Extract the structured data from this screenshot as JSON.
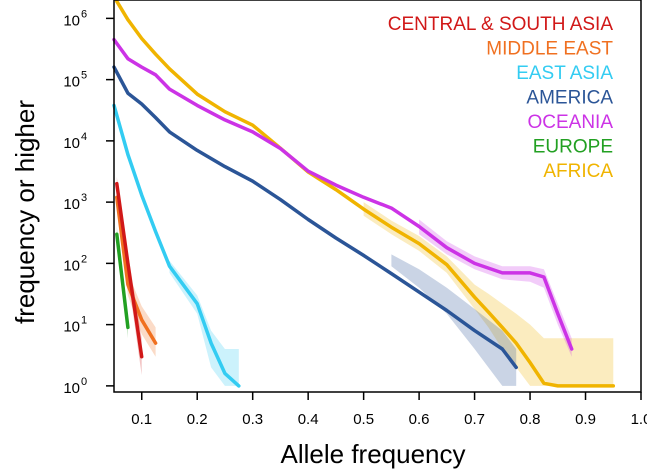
{
  "chart_data": {
    "type": "line",
    "xlabel": "Allele frequency",
    "ylabel": "frequency or higher",
    "xlim": [
      0.05,
      1.0
    ],
    "ylim_log10": [
      -0.1,
      6.3
    ],
    "y_scale": "log10",
    "grid": false,
    "legend_placement": "top-right",
    "x_ticks": [
      {
        "value": 0.1,
        "label": "0.1"
      },
      {
        "value": 0.2,
        "label": "0.2"
      },
      {
        "value": 0.3,
        "label": "0.3"
      },
      {
        "value": 0.4,
        "label": "0.4"
      },
      {
        "value": 0.5,
        "label": "0.5"
      },
      {
        "value": 0.6,
        "label": "0.6"
      },
      {
        "value": 0.7,
        "label": "0.7"
      },
      {
        "value": 0.8,
        "label": "0.8"
      },
      {
        "value": 0.9,
        "label": "0.9"
      },
      {
        "value": 1.0,
        "label": "1.0"
      }
    ],
    "y_ticks": [
      {
        "exp": 0,
        "base": "10",
        "sup": "0"
      },
      {
        "exp": 1,
        "base": "10",
        "sup": "1"
      },
      {
        "exp": 2,
        "base": "10",
        "sup": "2"
      },
      {
        "exp": 3,
        "base": "10",
        "sup": "3"
      },
      {
        "exp": 4,
        "base": "10",
        "sup": "4"
      },
      {
        "exp": 5,
        "base": "10",
        "sup": "5"
      },
      {
        "exp": 6,
        "base": "10",
        "sup": "6"
      }
    ],
    "series": [
      {
        "name": "AFRICA",
        "color": "#f0b400",
        "points": [
          [
            0.055,
            1900000
          ],
          [
            0.075,
            950000
          ],
          [
            0.1,
            470000
          ],
          [
            0.125,
            260000
          ],
          [
            0.15,
            150000
          ],
          [
            0.2,
            58000
          ],
          [
            0.25,
            30000
          ],
          [
            0.3,
            18000
          ],
          [
            0.35,
            7600
          ],
          [
            0.4,
            3100
          ],
          [
            0.45,
            1600
          ],
          [
            0.5,
            770
          ],
          [
            0.55,
            390
          ],
          [
            0.6,
            210
          ],
          [
            0.65,
            95
          ],
          [
            0.7,
            28
          ],
          [
            0.725,
            16
          ],
          [
            0.75,
            9
          ],
          [
            0.775,
            5
          ],
          [
            0.8,
            2.4
          ],
          [
            0.825,
            1.1
          ],
          [
            0.85,
            1
          ],
          [
            0.9,
            1
          ],
          [
            0.95,
            1
          ]
        ],
        "band": {
          "from_index": 11,
          "lo": [
            600,
            300,
            160,
            70,
            18,
            9,
            4,
            2,
            1,
            1,
            1,
            1,
            1
          ],
          "hi": [
            1000,
            500,
            280,
            130,
            45,
            32,
            22,
            15,
            10,
            6,
            6,
            6,
            6
          ]
        }
      },
      {
        "name": "OCEANIA",
        "color": "#cc33e6",
        "points": [
          [
            0.05,
            450000
          ],
          [
            0.075,
            220000
          ],
          [
            0.1,
            160000
          ],
          [
            0.125,
            120000
          ],
          [
            0.15,
            70000
          ],
          [
            0.2,
            38000
          ],
          [
            0.25,
            22000
          ],
          [
            0.3,
            14000
          ],
          [
            0.35,
            7500
          ],
          [
            0.4,
            3200
          ],
          [
            0.45,
            1900
          ],
          [
            0.5,
            1200
          ],
          [
            0.55,
            800
          ],
          [
            0.6,
            400
          ],
          [
            0.65,
            180
          ],
          [
            0.7,
            100
          ],
          [
            0.75,
            70
          ],
          [
            0.8,
            70
          ],
          [
            0.825,
            60
          ],
          [
            0.85,
            15
          ],
          [
            0.875,
            4
          ]
        ],
        "band": {
          "from_index": 13,
          "lo": [
            300,
            140,
            80,
            55,
            50,
            40,
            10,
            3
          ],
          "hi": [
            520,
            230,
            130,
            90,
            90,
            80,
            22,
            6
          ]
        }
      },
      {
        "name": "AMERICA",
        "color": "#2b5597",
        "points": [
          [
            0.05,
            160000
          ],
          [
            0.075,
            60000
          ],
          [
            0.1,
            40000
          ],
          [
            0.125,
            24000
          ],
          [
            0.15,
            14000
          ],
          [
            0.2,
            7000
          ],
          [
            0.25,
            3800
          ],
          [
            0.3,
            2200
          ],
          [
            0.35,
            1100
          ],
          [
            0.4,
            520
          ],
          [
            0.45,
            260
          ],
          [
            0.5,
            135
          ],
          [
            0.55,
            68
          ],
          [
            0.6,
            34
          ],
          [
            0.65,
            17
          ],
          [
            0.7,
            8
          ],
          [
            0.75,
            4
          ],
          [
            0.775,
            2
          ]
        ],
        "band": {
          "from_index": 12,
          "lo": [
            90,
            40,
            15,
            4,
            1,
            1
          ],
          "hi": [
            140,
            80,
            40,
            18,
            8,
            4
          ]
        }
      },
      {
        "name": "EAST ASIA",
        "color": "#33ccf2",
        "points": [
          [
            0.05,
            38000
          ],
          [
            0.075,
            6000
          ],
          [
            0.1,
            1300
          ],
          [
            0.125,
            330
          ],
          [
            0.15,
            90
          ],
          [
            0.2,
            22
          ],
          [
            0.225,
            5
          ],
          [
            0.25,
            1.6
          ],
          [
            0.275,
            1
          ]
        ],
        "band": {
          "from_index": 4,
          "lo": [
            70,
            15,
            2,
            1,
            1
          ],
          "hi": [
            110,
            30,
            8,
            4,
            4
          ]
        }
      },
      {
        "name": "MIDDLE EAST",
        "color": "#f07020",
        "points": [
          [
            0.055,
            1200
          ],
          [
            0.075,
            45
          ],
          [
            0.1,
            12
          ],
          [
            0.125,
            5
          ]
        ],
        "band": {
          "from_index": 0,
          "lo": [
            900,
            30,
            7,
            3
          ],
          "hi": [
            1500,
            70,
            20,
            9
          ]
        }
      },
      {
        "name": "CENTRAL & SOUTH ASIA",
        "color": "#d11818",
        "points": [
          [
            0.055,
            2000
          ],
          [
            0.075,
            100
          ],
          [
            0.1,
            3
          ]
        ],
        "band": {
          "from_index": 0,
          "lo": [
            1500,
            60,
            1.5
          ],
          "hi": [
            2600,
            150,
            6
          ]
        }
      },
      {
        "name": "EUROPE",
        "color": "#22a022",
        "points": [
          [
            0.055,
            300
          ],
          [
            0.075,
            9
          ]
        ],
        "band": {
          "from_index": 0,
          "lo": [
            220,
            6
          ],
          "hi": [
            400,
            13
          ]
        }
      }
    ],
    "legend": [
      {
        "label": "CENTRAL & SOUTH ASIA",
        "color": "#d11818"
      },
      {
        "label": "MIDDLE EAST",
        "color": "#f07020"
      },
      {
        "label": "EAST ASIA",
        "color": "#33ccf2"
      },
      {
        "label": "AMERICA",
        "color": "#2b5597"
      },
      {
        "label": "OCEANIA",
        "color": "#cc33e6"
      },
      {
        "label": "EUROPE",
        "color": "#22a022"
      },
      {
        "label": "AFRICA",
        "color": "#f0b400"
      }
    ]
  }
}
